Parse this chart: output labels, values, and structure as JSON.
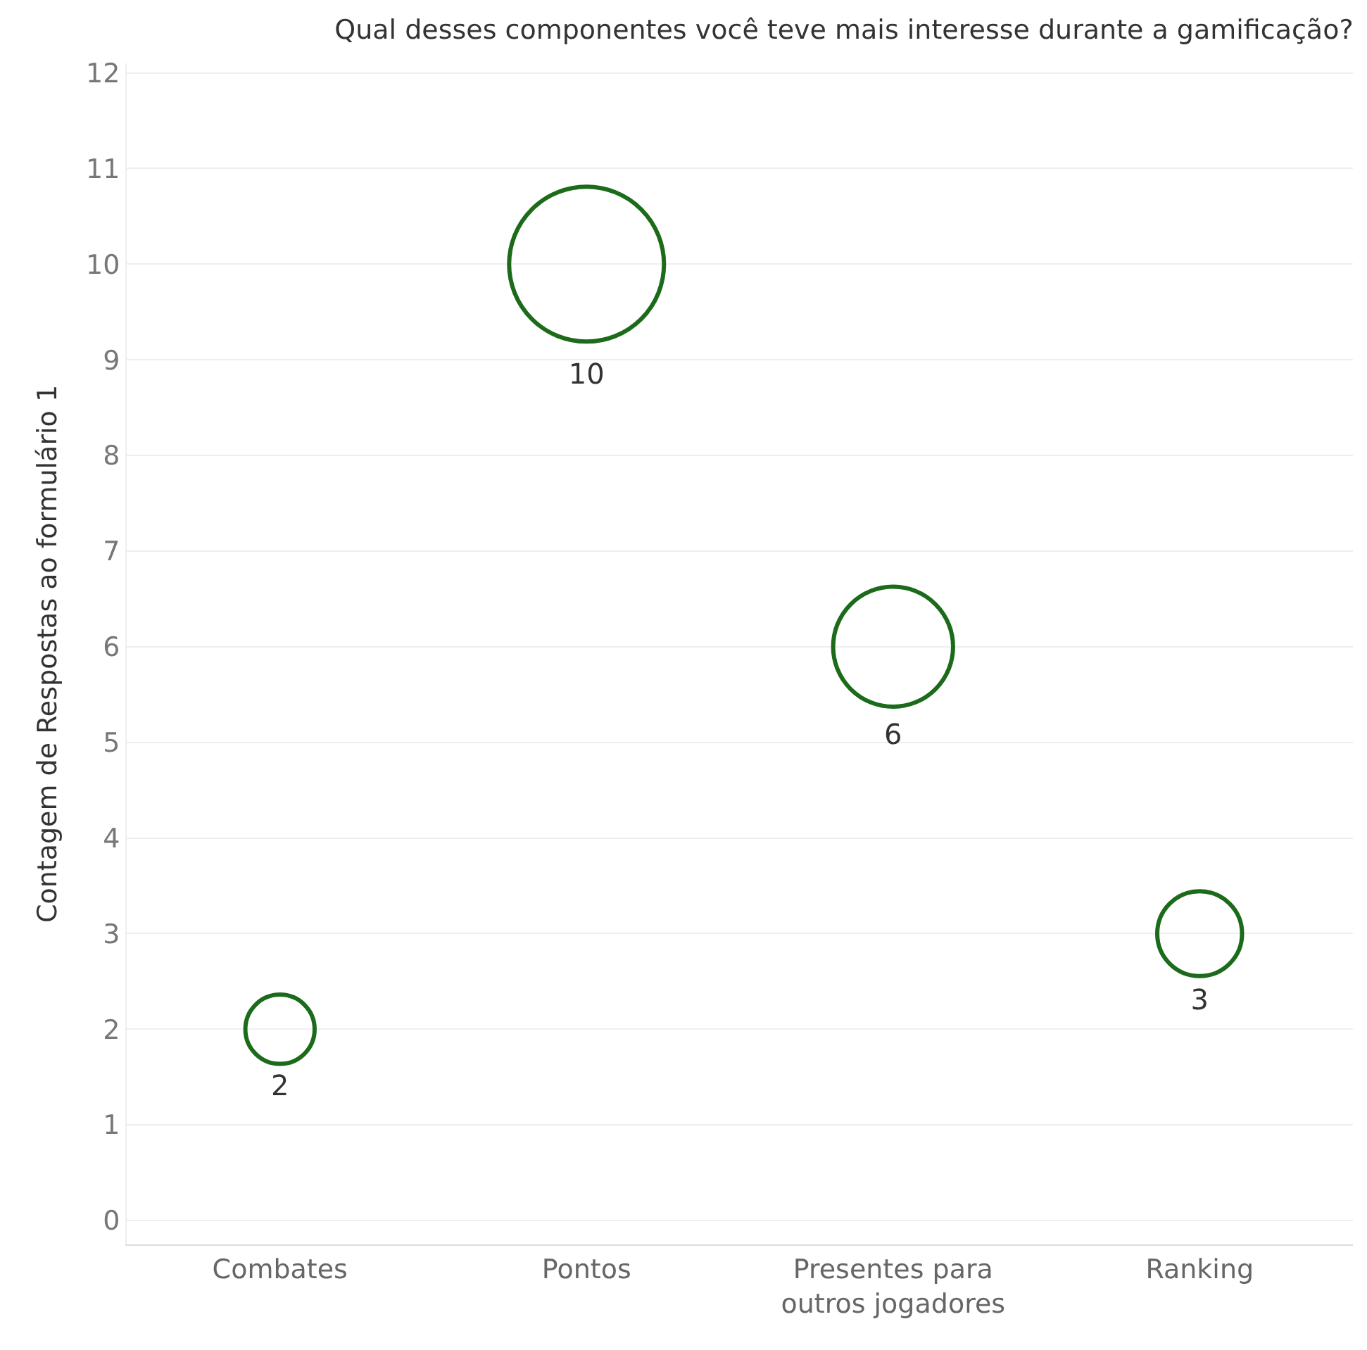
{
  "chart_data": {
    "type": "bubble",
    "title": "Qual desses componentes você teve mais interesse durante a gamificação?",
    "ylabel": "Contagem de Respostas ao formulário 1",
    "categories": [
      "Combates",
      "Pontos",
      "Presentes para outros jogadores",
      "Ranking"
    ],
    "values": [
      2,
      10,
      6,
      3
    ],
    "sizes": [
      0.2,
      1,
      0.6,
      0.3
    ],
    "color": "#1b6b1b",
    "ylim": [
      -0.25,
      12.1
    ],
    "yticks": [
      0,
      1,
      2,
      3,
      4,
      5,
      6,
      7,
      8,
      9,
      10,
      11,
      12
    ],
    "grid": "y",
    "data_labels": true,
    "legend": false
  }
}
